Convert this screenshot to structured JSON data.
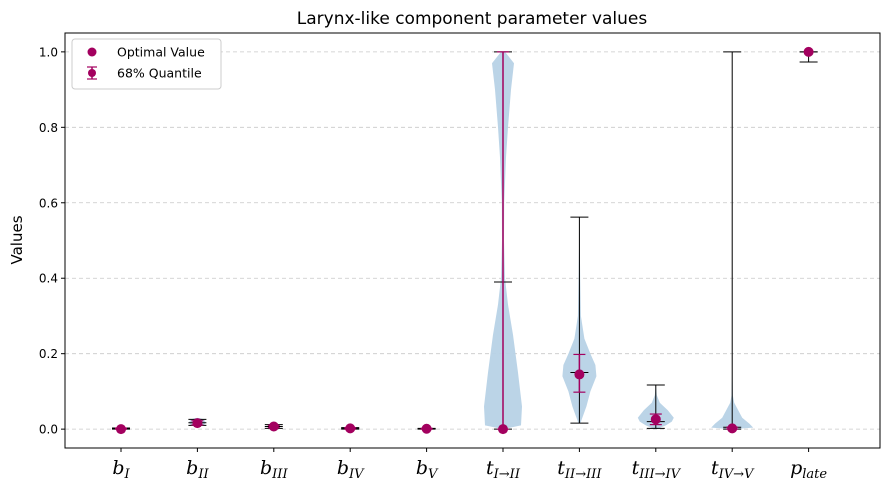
{
  "chart_data": {
    "type": "violin",
    "title": "Larynx-like component parameter values",
    "xlabel": "",
    "ylabel": "Values",
    "ylim": [
      -0.05,
      1.05
    ],
    "yticks": [
      0.0,
      0.2,
      0.4,
      0.6,
      0.8,
      1.0
    ],
    "ytick_labels": [
      "0.0",
      "0.2",
      "0.4",
      "0.6",
      "0.8",
      "1.0"
    ],
    "grid": "y-dashed",
    "legend_position": "top-left",
    "legend": [
      "Optimal Value",
      "68% Quantile"
    ],
    "colors": {
      "violin": "#b7d2e6",
      "marker": "#a3005f",
      "whisker": "#000000"
    },
    "categories": [
      {
        "base": "b",
        "sub": "I"
      },
      {
        "base": "b",
        "sub": "II"
      },
      {
        "base": "b",
        "sub": "III"
      },
      {
        "base": "b",
        "sub": "IV"
      },
      {
        "base": "b",
        "sub": "V"
      },
      {
        "base": "t",
        "sub": "I→II"
      },
      {
        "base": "t",
        "sub": "II→III"
      },
      {
        "base": "t",
        "sub": "III→IV"
      },
      {
        "base": "t",
        "sub": "IV→V"
      },
      {
        "base": "p",
        "sub": "late"
      }
    ],
    "series": [
      {
        "name": "Optimal Value",
        "values": [
          0.0,
          0.016,
          0.007,
          0.002,
          0.001,
          0.0,
          0.145,
          0.026,
          0.002,
          1.0
        ]
      },
      {
        "name": "68% Quantile",
        "lower": [
          0.0,
          0.011,
          0.004,
          0.0,
          0.0,
          0.0,
          0.098,
          0.012,
          0.0,
          1.0
        ],
        "upper": [
          0.003,
          0.022,
          0.01,
          0.004,
          0.002,
          1.0,
          0.198,
          0.04,
          0.005,
          1.0
        ]
      }
    ],
    "whiskers": {
      "min": [
        0.0,
        0.01,
        0.002,
        0.0,
        0.0,
        0.0,
        0.016,
        0.002,
        0.0,
        0.973
      ],
      "max": [
        0.003,
        0.026,
        0.012,
        0.004,
        0.002,
        1.0,
        0.562,
        0.117,
        1.0,
        1.0
      ],
      "median": [
        0.001,
        0.017,
        0.007,
        0.002,
        0.001,
        0.39,
        0.15,
        0.02,
        0.005,
        1.0
      ]
    }
  }
}
